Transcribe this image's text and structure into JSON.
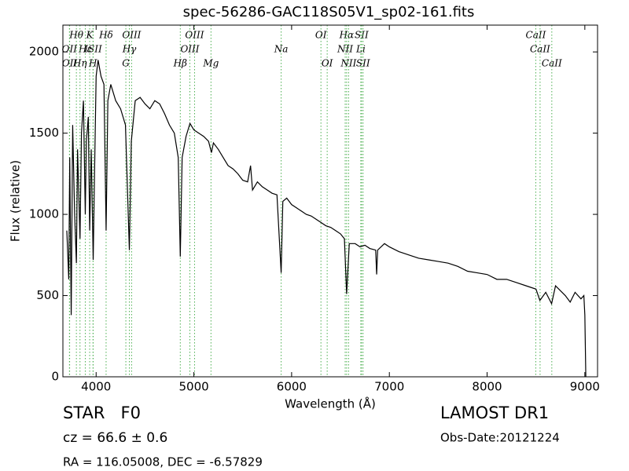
{
  "chart_data": {
    "type": "line",
    "title": "spec-56286-GAC118S05V1_sp02-161.fits",
    "x_label": "Wavelength (Å)",
    "y_label": "Flux (relative)",
    "color": "#000000",
    "line_marker_color": "#4caf50",
    "xlim": [
      3660,
      9130
    ],
    "ylim": [
      0,
      2165
    ],
    "xticks": [
      4000,
      5000,
      6000,
      7000,
      8000,
      9000
    ],
    "yticks": [
      0,
      500,
      1000,
      1500,
      2000
    ],
    "x": [
      3700,
      3720,
      3730,
      3745,
      3760,
      3780,
      3798,
      3810,
      3835,
      3850,
      3870,
      3889,
      3900,
      3920,
      3934,
      3950,
      3970,
      3985,
      4000,
      4020,
      4050,
      4080,
      4102,
      4120,
      4150,
      4200,
      4250,
      4300,
      4340,
      4360,
      4400,
      4450,
      4500,
      4550,
      4600,
      4650,
      4700,
      4750,
      4800,
      4840,
      4861,
      4880,
      4920,
      4960,
      5000,
      5050,
      5100,
      5150,
      5180,
      5200,
      5250,
      5300,
      5350,
      5400,
      5450,
      5500,
      5550,
      5580,
      5600,
      5650,
      5700,
      5750,
      5800,
      5850,
      5893,
      5910,
      5950,
      6000,
      6050,
      6100,
      6150,
      6200,
      6250,
      6300,
      6350,
      6400,
      6450,
      6500,
      6540,
      6563,
      6590,
      6650,
      6700,
      6750,
      6800,
      6860,
      6870,
      6880,
      6950,
      7000,
      7100,
      7200,
      7300,
      7400,
      7500,
      7600,
      7700,
      7800,
      7900,
      8000,
      8100,
      8200,
      8300,
      8400,
      8500,
      8540,
      8600,
      8660,
      8700,
      8800,
      8850,
      8900,
      8960,
      8990,
      9000,
      9010
    ],
    "values": [
      900,
      600,
      1350,
      380,
      1550,
      1000,
      700,
      1400,
      850,
      1500,
      1700,
      1000,
      1450,
      1600,
      900,
      1400,
      720,
      1300,
      1850,
      1950,
      1850,
      1800,
      900,
      1700,
      1800,
      1700,
      1650,
      1550,
      780,
      1450,
      1700,
      1720,
      1680,
      1650,
      1700,
      1680,
      1620,
      1550,
      1500,
      1350,
      740,
      1350,
      1480,
      1560,
      1520,
      1500,
      1480,
      1450,
      1380,
      1440,
      1400,
      1350,
      1300,
      1280,
      1250,
      1210,
      1200,
      1300,
      1150,
      1200,
      1170,
      1150,
      1130,
      1120,
      640,
      1080,
      1100,
      1060,
      1040,
      1020,
      1000,
      990,
      970,
      950,
      930,
      920,
      900,
      880,
      850,
      510,
      820,
      820,
      800,
      810,
      790,
      780,
      630,
      780,
      820,
      800,
      770,
      750,
      730,
      720,
      710,
      700,
      680,
      650,
      640,
      630,
      600,
      600,
      580,
      560,
      540,
      470,
      520,
      450,
      560,
      500,
      460,
      520,
      480,
      500,
      380,
      0
    ],
    "line_rows": [
      [
        {
          "label": "Hθ",
          "x": 3798
        },
        {
          "label": "K",
          "x": 3934
        },
        {
          "label": "Hδ",
          "x": 4102
        },
        {
          "label": "OIII",
          "x": 4363
        },
        {
          "label": "OIII",
          "x": 5007
        },
        {
          "label": "OI",
          "x": 6300
        },
        {
          "label": "Hα",
          "x": 6563
        },
        {
          "label": "SII",
          "x": 6716
        },
        {
          "label": "CaII",
          "x": 8498
        }
      ],
      [
        {
          "label": "OII",
          "x": 3727
        },
        {
          "label": "Hε",
          "x": 3889
        },
        {
          "label": "ISII",
          "x": 3970
        },
        {
          "label": "Hγ",
          "x": 4340
        },
        {
          "label": "OIII",
          "x": 4959
        },
        {
          "label": "Na",
          "x": 5893
        },
        {
          "label": "NII",
          "x": 6548
        },
        {
          "label": "Li",
          "x": 6708
        },
        {
          "label": "CaII",
          "x": 8542
        }
      ],
      [
        {
          "label": "OII",
          "x": 3729
        },
        {
          "label": "Hη",
          "x": 3835
        },
        {
          "label": "H",
          "x": 3968
        },
        {
          "label": "G",
          "x": 4304
        },
        {
          "label": "Hβ",
          "x": 4861
        },
        {
          "label": "Mg",
          "x": 5175
        },
        {
          "label": "OI",
          "x": 6364
        },
        {
          "label": "NII",
          "x": 6583
        },
        {
          "label": "SII",
          "x": 6731
        },
        {
          "label": "CaII",
          "x": 8662
        }
      ]
    ],
    "object_class": "STAR   F0",
    "survey": "LAMOST DR1",
    "redshift": "cz = 66.6 ± 0.6",
    "obs_date": "Obs-Date:20121224",
    "coords": "RA = 116.05008, DEC = -6.57829"
  }
}
